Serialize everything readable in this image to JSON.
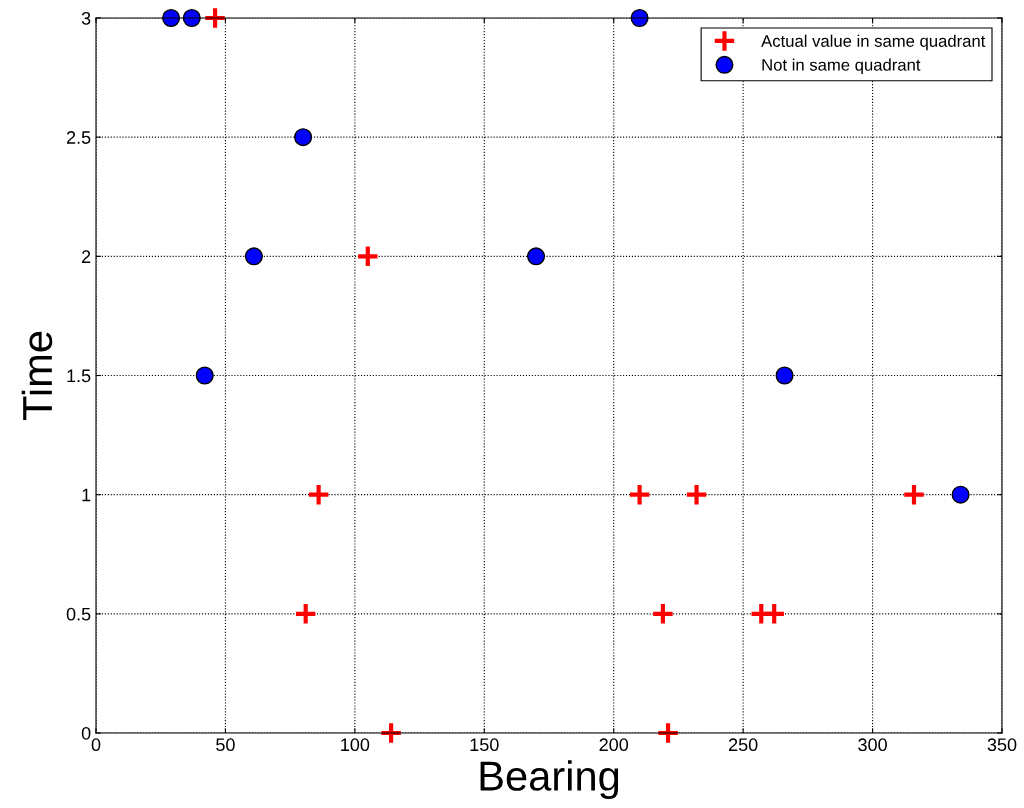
{
  "chart_data": {
    "type": "scatter",
    "xlabel": "Bearing",
    "ylabel": "Time",
    "xlim": [
      0,
      350
    ],
    "xticks": [
      0,
      50,
      100,
      150,
      200,
      250,
      300,
      350
    ],
    "ylim": [
      0,
      3
    ],
    "yticks": [
      0,
      0.5,
      1,
      1.5,
      2,
      2.5,
      3
    ],
    "grid": true,
    "legend": "top right",
    "series": [
      {
        "name": "Actual value in same quadrant",
        "color": "#ff0000",
        "marker": "cross",
        "x": [
          46,
          105,
          86,
          81,
          114,
          210,
          232,
          219,
          221,
          257,
          262,
          316
        ],
        "values": [
          3,
          2,
          1,
          0.5,
          0,
          1,
          1,
          0.5,
          0,
          0.5,
          0.5,
          1
        ]
      },
      {
        "name": "Not in same quadrant",
        "color": "#0000ff",
        "marker": "circle",
        "x": [
          29,
          37,
          80,
          61,
          42,
          170,
          210,
          266,
          334
        ],
        "values": [
          3,
          3,
          2.5,
          2,
          1.5,
          2,
          3,
          1.5,
          1
        ]
      }
    ]
  }
}
